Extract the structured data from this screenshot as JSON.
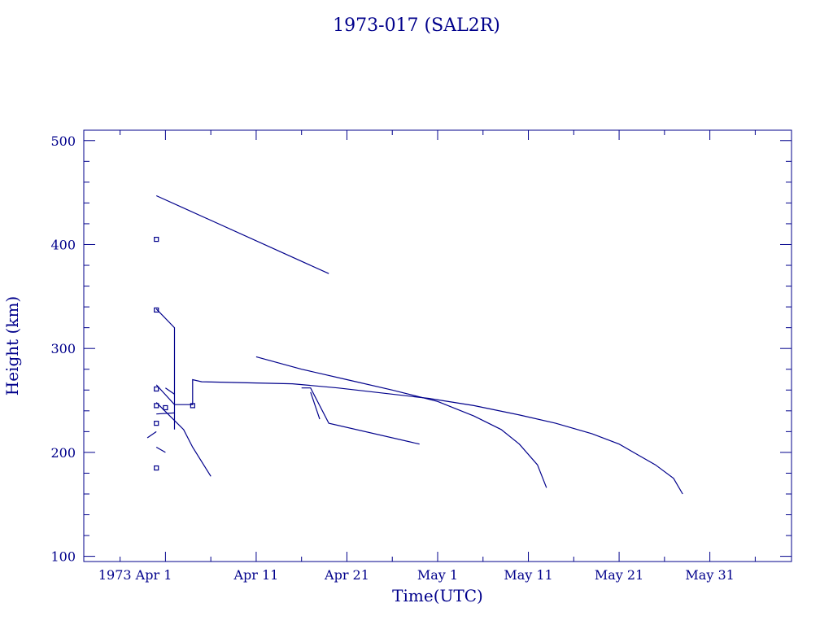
{
  "chart_data": {
    "type": "line",
    "title": "1973-017 (SAL2R)",
    "xlabel": "Time(UTC)",
    "ylabel": "Height (km)",
    "x_range": [
      "1973-03-23",
      "1973-06-09"
    ],
    "ylim": [
      95,
      510
    ],
    "x_tick_labels": [
      {
        "date": "1973-04-01",
        "label": "1973 Apr  1"
      },
      {
        "date": "1973-04-11",
        "label": "Apr 11"
      },
      {
        "date": "1973-04-21",
        "label": "Apr 21"
      },
      {
        "date": "1973-05-01",
        "label": "May  1"
      },
      {
        "date": "1973-05-11",
        "label": "May 11"
      },
      {
        "date": "1973-05-21",
        "label": "May 21"
      },
      {
        "date": "1973-05-31",
        "label": "May 31"
      }
    ],
    "y_tick_labels": [
      100,
      200,
      300,
      400,
      500
    ],
    "grid": false,
    "color": "#00008b",
    "series": [
      {
        "points": [
          [
            "1973-03-31",
            447
          ],
          [
            "1973-04-19",
            372
          ]
        ]
      },
      {
        "points": [
          [
            "1973-03-31",
            338
          ],
          [
            "1973-04-02",
            320
          ],
          [
            "1973-04-02",
            222
          ]
        ]
      },
      {
        "points": [
          [
            "1973-03-31",
            265
          ],
          [
            "1973-04-02",
            246
          ],
          [
            "1973-04-04",
            246
          ],
          [
            "1973-04-04",
            270
          ],
          [
            "1973-04-05",
            268
          ],
          [
            "1973-04-15",
            266
          ],
          [
            "1973-04-20",
            262
          ],
          [
            "1973-04-30",
            252
          ],
          [
            "1973-05-05",
            245
          ],
          [
            "1973-05-10",
            236
          ],
          [
            "1973-05-14",
            228
          ],
          [
            "1973-05-18",
            218
          ],
          [
            "1973-05-21",
            208
          ],
          [
            "1973-05-23",
            198
          ],
          [
            "1973-05-25",
            188
          ],
          [
            "1973-05-27",
            175
          ],
          [
            "1973-05-28",
            160
          ]
        ]
      },
      {
        "points": [
          [
            "1973-04-11",
            292
          ],
          [
            "1973-04-16",
            280
          ],
          [
            "1973-04-21",
            270
          ],
          [
            "1973-04-26",
            260
          ],
          [
            "1973-05-01",
            249
          ],
          [
            "1973-05-05",
            235
          ],
          [
            "1973-05-08",
            222
          ],
          [
            "1973-05-10",
            208
          ],
          [
            "1973-05-12",
            188
          ],
          [
            "1973-05-13",
            166
          ]
        ]
      },
      {
        "points": [
          [
            "1973-04-16",
            262
          ],
          [
            "1973-04-17",
            262
          ],
          [
            "1973-04-19",
            228
          ],
          [
            "1973-04-29",
            208
          ]
        ]
      },
      {
        "points": [
          [
            "1973-04-17",
            258
          ],
          [
            "1973-04-18",
            232
          ]
        ]
      },
      {
        "points": [
          [
            "1973-03-31",
            248
          ],
          [
            "1973-04-03",
            222
          ],
          [
            "1973-04-04",
            205
          ],
          [
            "1973-04-06",
            177
          ]
        ]
      },
      {
        "points": [
          [
            "1973-03-31",
            237
          ],
          [
            "1973-04-02",
            238
          ]
        ]
      },
      {
        "points": [
          [
            "1973-03-30",
            214
          ],
          [
            "1973-03-31",
            220
          ]
        ]
      },
      {
        "points": [
          [
            "1973-03-31",
            205
          ],
          [
            "1973-04-01",
            200
          ]
        ]
      },
      {
        "points": [
          [
            "1973-04-01",
            262
          ],
          [
            "1973-04-02",
            256
          ]
        ]
      }
    ],
    "markers": [
      [
        "1973-03-31",
        405
      ],
      [
        "1973-03-31",
        337
      ],
      [
        "1973-03-31",
        261
      ],
      [
        "1973-03-31",
        245
      ],
      [
        "1973-04-01",
        243
      ],
      [
        "1973-04-04",
        245
      ],
      [
        "1973-03-31",
        228
      ],
      [
        "1973-03-31",
        185
      ]
    ]
  }
}
